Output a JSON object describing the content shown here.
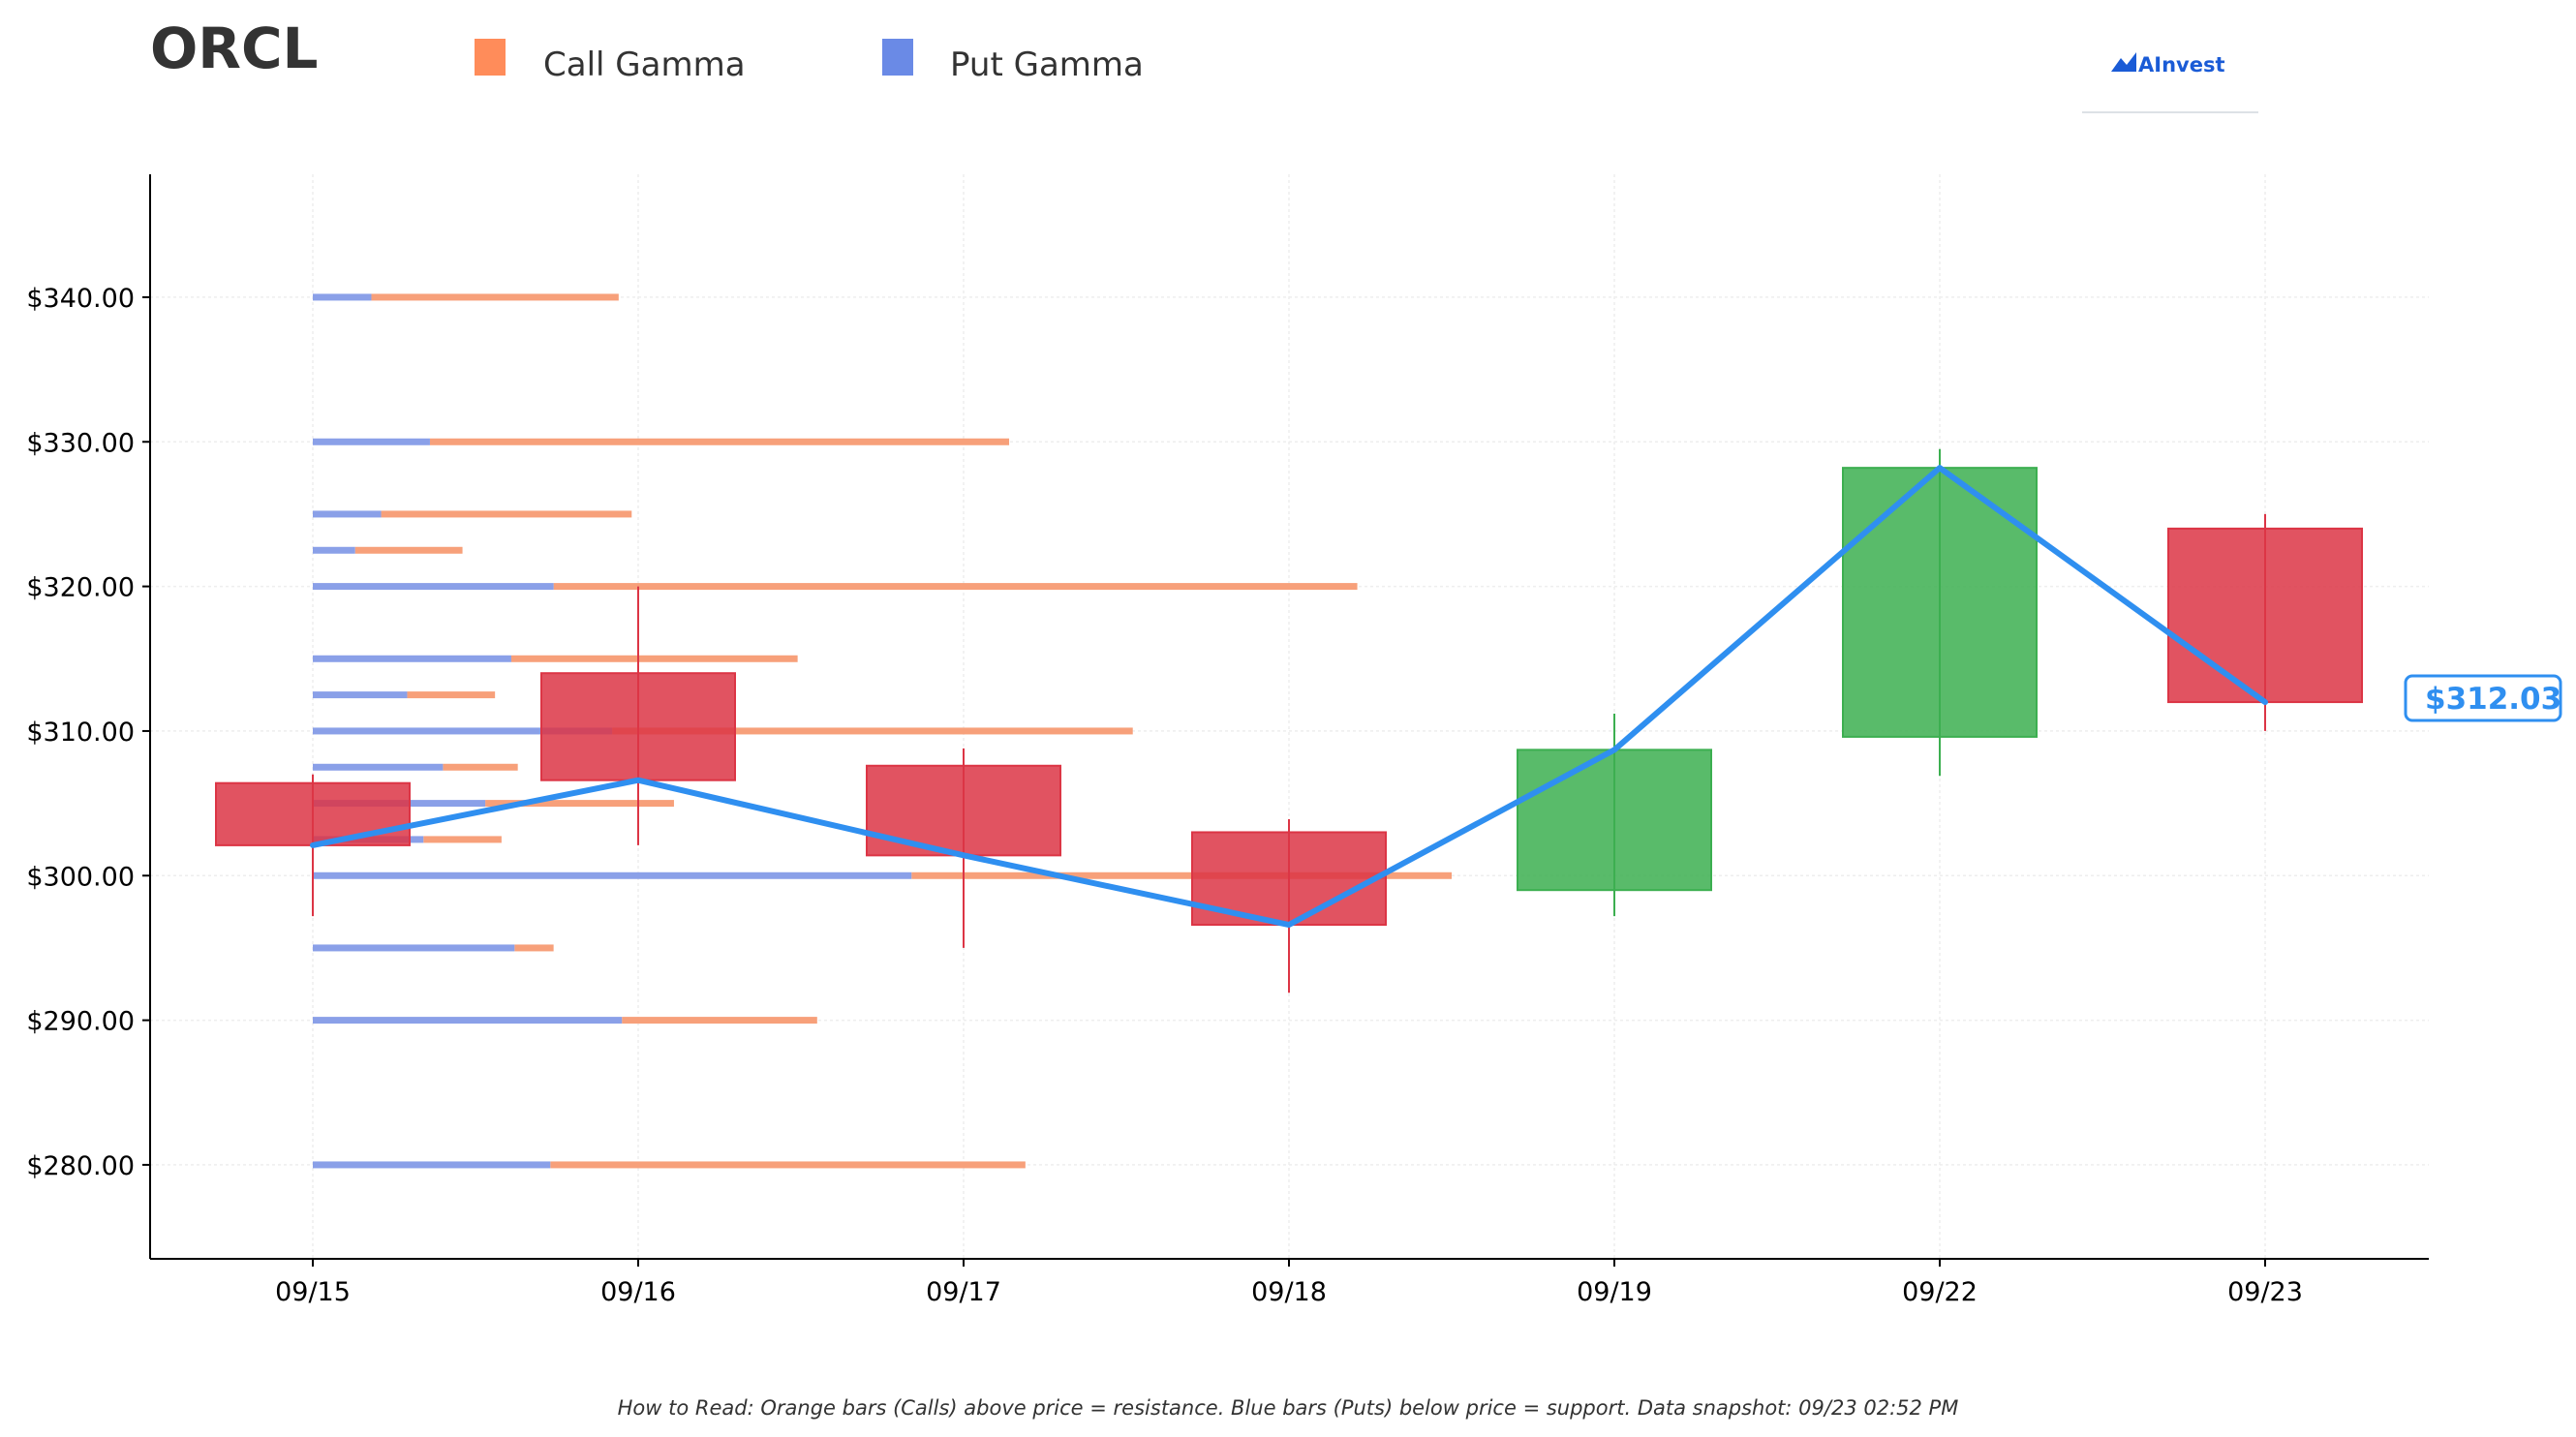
{
  "chart_data": {
    "type": "candlestick",
    "title": "ORCL",
    "legend": [
      {
        "name": "Call Gamma",
        "color": "#ff8c5a"
      },
      {
        "name": "Put Gamma",
        "color": "#6a8ae6"
      }
    ],
    "legend_placement": "top",
    "categories": [
      "09/15",
      "09/16",
      "09/17",
      "09/18",
      "09/19",
      "09/22",
      "09/23"
    ],
    "ohlc": [
      {
        "date": "09/15",
        "open": 306.4,
        "high": 307.0,
        "low": 297.2,
        "close": 302.1
      },
      {
        "date": "09/16",
        "open": 314.0,
        "high": 320.0,
        "low": 302.1,
        "close": 306.6
      },
      {
        "date": "09/17",
        "open": 307.6,
        "high": 308.8,
        "low": 295.0,
        "close": 301.4
      },
      {
        "date": "09/18",
        "open": 303.0,
        "high": 303.9,
        "low": 291.9,
        "close": 296.6
      },
      {
        "date": "09/19",
        "open": 299.0,
        "high": 311.2,
        "low": 297.2,
        "close": 308.7
      },
      {
        "date": "09/22",
        "open": 309.6,
        "high": 329.5,
        "low": 306.9,
        "close": 328.2
      },
      {
        "date": "09/23",
        "open": 324.0,
        "high": 325.0,
        "low": 310.0,
        "close": 312.0
      }
    ],
    "close_line": {
      "color": "#2f8ff0",
      "values": [
        302.1,
        306.6,
        301.4,
        296.6,
        308.7,
        328.2,
        312.0
      ]
    },
    "gamma_levels": [
      {
        "strike": 340.0,
        "put": 0.18,
        "call": 0.94
      },
      {
        "strike": 330.0,
        "put": 0.36,
        "call": 2.14
      },
      {
        "strike": 325.0,
        "put": 0.21,
        "call": 0.98
      },
      {
        "strike": 322.5,
        "put": 0.13,
        "call": 0.46
      },
      {
        "strike": 320.0,
        "put": 0.74,
        "call": 3.21
      },
      {
        "strike": 315.0,
        "put": 0.61,
        "call": 1.49
      },
      {
        "strike": 312.5,
        "put": 0.29,
        "call": 0.56
      },
      {
        "strike": 310.0,
        "put": 0.92,
        "call": 2.52
      },
      {
        "strike": 307.5,
        "put": 0.4,
        "call": 0.63
      },
      {
        "strike": 305.0,
        "put": 0.53,
        "call": 1.11
      },
      {
        "strike": 302.5,
        "put": 0.34,
        "call": 0.58
      },
      {
        "strike": 300.0,
        "put": 1.84,
        "call": 3.5
      },
      {
        "strike": 295.0,
        "put": 0.62,
        "call": 0.74
      },
      {
        "strike": 290.0,
        "put": 0.95,
        "call": 1.55
      },
      {
        "strike": 280.0,
        "put": 0.73,
        "call": 2.19
      }
    ],
    "ylim": [
      273.5,
      348.5
    ],
    "yticks": [
      280,
      290,
      300,
      310,
      320,
      330,
      340
    ],
    "ytick_labels": [
      "$280.00",
      "$290.00",
      "$300.00",
      "$310.00",
      "$320.00",
      "$330.00",
      "$340.00"
    ],
    "grid": true,
    "current_price": 312.03,
    "current_price_label": "$312.03",
    "colors": {
      "up": "#3caf50",
      "down": "#dc3545",
      "call": "#f7a07a",
      "put": "#8aa0e8",
      "line": "#2f8ff0"
    }
  },
  "brand": {
    "name": "AInvest"
  },
  "footnote": "How to Read: Orange bars (Calls) above price = resistance. Blue bars (Puts) below price = support. Data snapshot: 09/23 02:52 PM"
}
